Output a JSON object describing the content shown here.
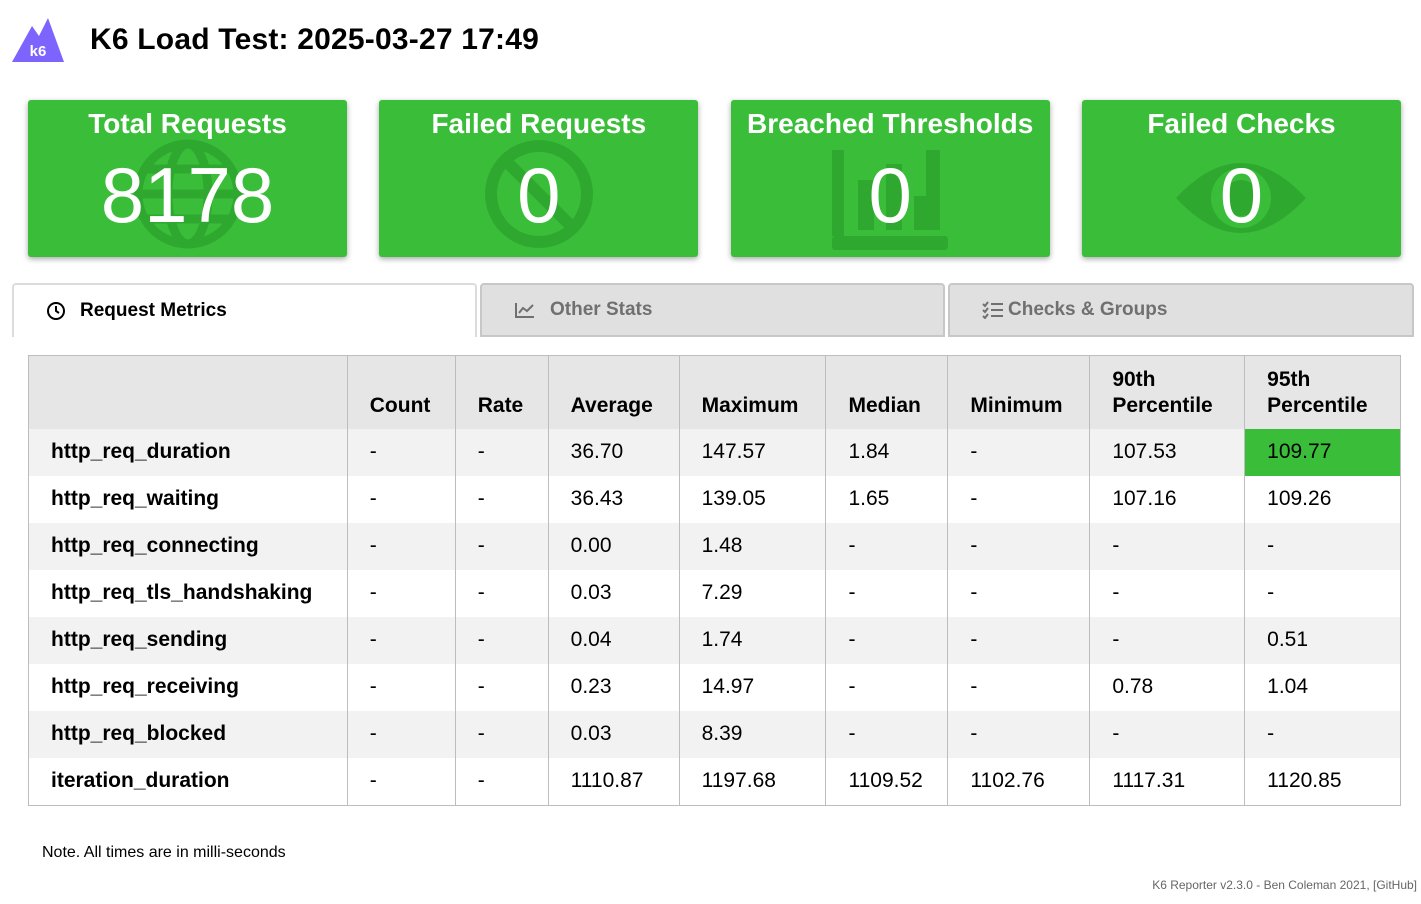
{
  "header": {
    "title": "K6 Load Test: 2025-03-27 17:49",
    "logo_text": "k6"
  },
  "cards": [
    {
      "title": "Total Requests",
      "value": "8178",
      "icon": "globe-icon"
    },
    {
      "title": "Failed Requests",
      "value": "0",
      "icon": "ban-icon"
    },
    {
      "title": "Breached Thresholds",
      "value": "0",
      "icon": "bar-chart-icon"
    },
    {
      "title": "Failed Checks",
      "value": "0",
      "icon": "eye-icon"
    }
  ],
  "tabs": [
    {
      "label": "Request Metrics",
      "icon": "clock-icon",
      "active": true
    },
    {
      "label": "Other Stats",
      "icon": "line-chart-icon",
      "active": false
    },
    {
      "label": "Checks & Groups",
      "icon": "checklist-icon",
      "active": false
    }
  ],
  "table": {
    "headers": [
      "",
      "Count",
      "Rate",
      "Average",
      "Maximum",
      "Median",
      "Minimum",
      "90th Percentile",
      "95th Percentile"
    ],
    "rows": [
      [
        "http_req_duration",
        "-",
        "-",
        "36.70",
        "147.57",
        "1.84",
        "-",
        "107.53",
        "109.77"
      ],
      [
        "http_req_waiting",
        "-",
        "-",
        "36.43",
        "139.05",
        "1.65",
        "-",
        "107.16",
        "109.26"
      ],
      [
        "http_req_connecting",
        "-",
        "-",
        "0.00",
        "1.48",
        "-",
        "-",
        "-",
        "-"
      ],
      [
        "http_req_tls_handshaking",
        "-",
        "-",
        "0.03",
        "7.29",
        "-",
        "-",
        "-",
        "-"
      ],
      [
        "http_req_sending",
        "-",
        "-",
        "0.04",
        "1.74",
        "-",
        "-",
        "-",
        "0.51"
      ],
      [
        "http_req_receiving",
        "-",
        "-",
        "0.23",
        "14.97",
        "-",
        "-",
        "0.78",
        "1.04"
      ],
      [
        "http_req_blocked",
        "-",
        "-",
        "0.03",
        "8.39",
        "-",
        "-",
        "-",
        "-"
      ],
      [
        "iteration_duration",
        "-",
        "-",
        "1110.87",
        "1197.68",
        "1109.52",
        "1102.76",
        "1117.31",
        "1120.85"
      ]
    ],
    "highlight": {
      "row": 0,
      "col": 8,
      "color": "#3abe3a"
    }
  },
  "note": "Note. All times are in milli-seconds",
  "footer": "K6 Reporter v2.3.0 - Ben Coleman 2021, [GitHub]",
  "colors": {
    "card_green": "#3abe3a",
    "logo_purple": "#7d64ff"
  }
}
